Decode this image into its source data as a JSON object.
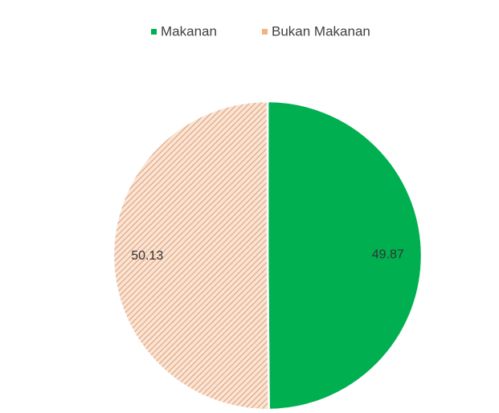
{
  "chart_data": {
    "type": "pie",
    "categories": [
      "Makanan",
      "Bukan Makanan"
    ],
    "values": [
      49.87,
      50.13
    ],
    "colors": [
      "#00b050",
      "#f8cbad"
    ],
    "legend": "top"
  }
}
